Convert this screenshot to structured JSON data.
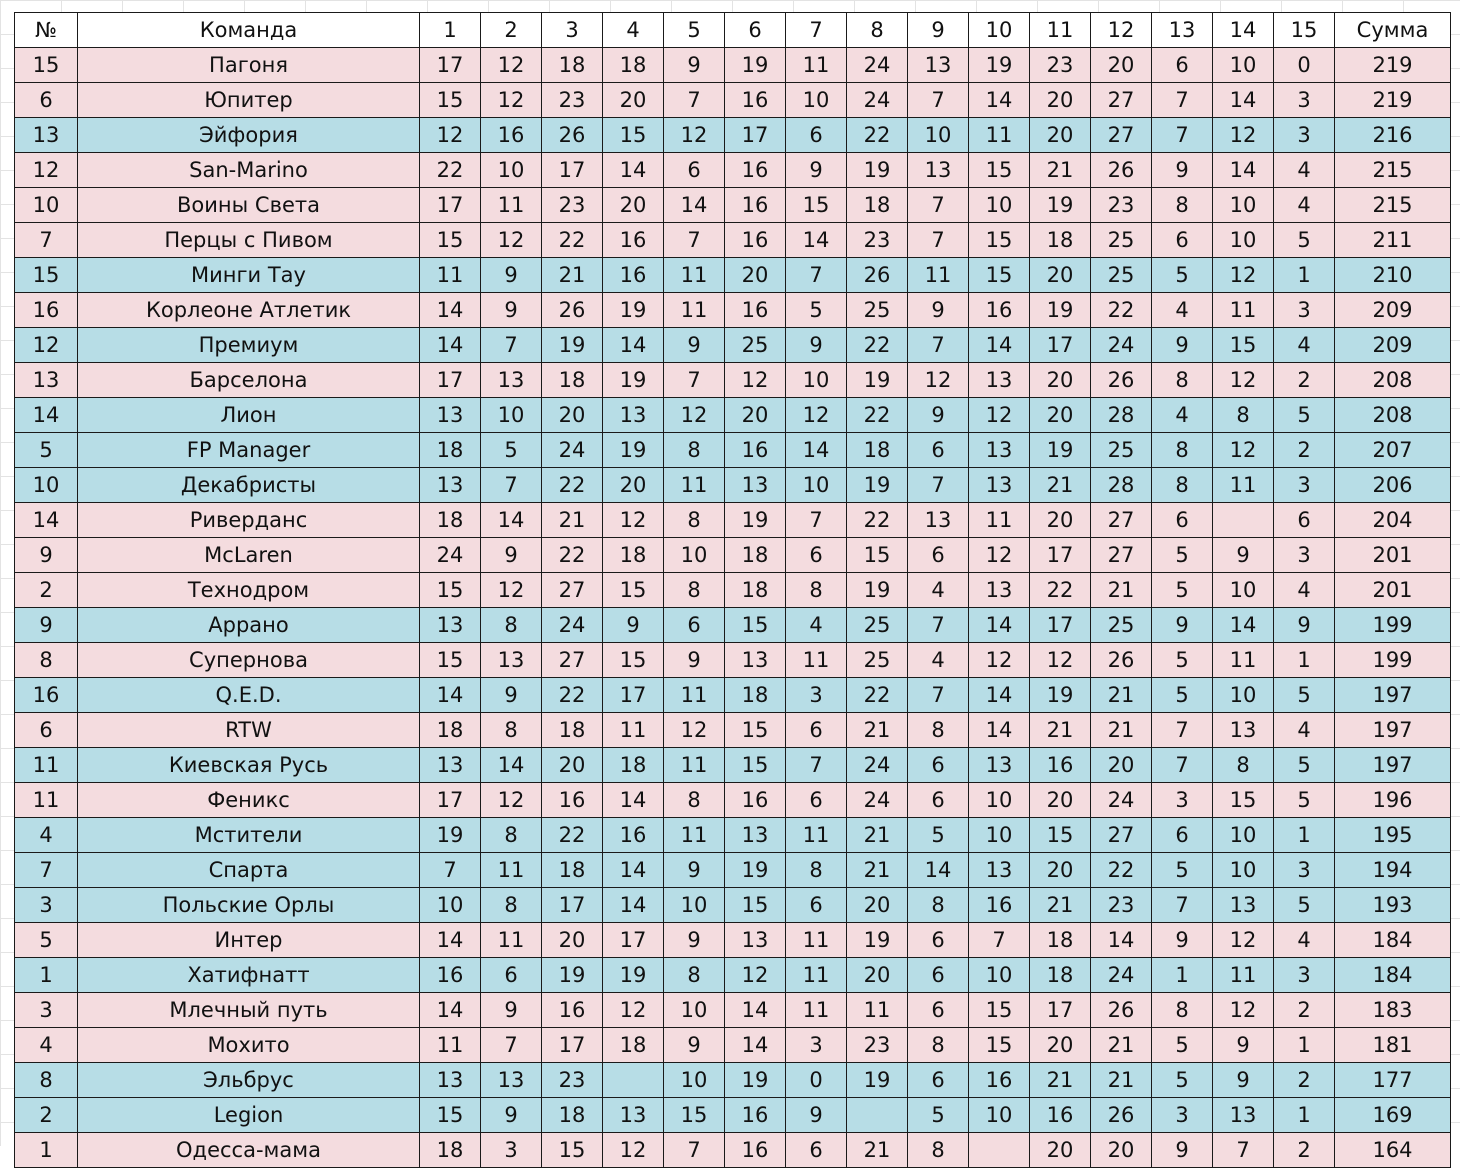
{
  "colors": {
    "pink_row": "#f4dcdf",
    "blue_row": "#b7dde6",
    "border": "#1a1a1a"
  },
  "table": {
    "headers": [
      "№",
      "Команда",
      "1",
      "2",
      "3",
      "4",
      "5",
      "6",
      "7",
      "8",
      "9",
      "10",
      "11",
      "12",
      "13",
      "14",
      "15",
      "Сумма"
    ],
    "rows": [
      {
        "color": "pink",
        "cells": [
          "15",
          "Пагоня",
          "17",
          "12",
          "18",
          "18",
          "9",
          "19",
          "11",
          "24",
          "13",
          "19",
          "23",
          "20",
          "6",
          "10",
          "0",
          "219"
        ]
      },
      {
        "color": "pink",
        "cells": [
          "6",
          "Юпитер",
          "15",
          "12",
          "23",
          "20",
          "7",
          "16",
          "10",
          "24",
          "7",
          "14",
          "20",
          "27",
          "7",
          "14",
          "3",
          "219"
        ]
      },
      {
        "color": "blue",
        "cells": [
          "13",
          "Эйфория",
          "12",
          "16",
          "26",
          "15",
          "12",
          "17",
          "6",
          "22",
          "10",
          "11",
          "20",
          "27",
          "7",
          "12",
          "3",
          "216"
        ]
      },
      {
        "color": "pink",
        "cells": [
          "12",
          "San-Marino",
          "22",
          "10",
          "17",
          "14",
          "6",
          "16",
          "9",
          "19",
          "13",
          "15",
          "21",
          "26",
          "9",
          "14",
          "4",
          "215"
        ]
      },
      {
        "color": "pink",
        "cells": [
          "10",
          "Воины Света",
          "17",
          "11",
          "23",
          "20",
          "14",
          "16",
          "15",
          "18",
          "7",
          "10",
          "19",
          "23",
          "8",
          "10",
          "4",
          "215"
        ]
      },
      {
        "color": "pink",
        "cells": [
          "7",
          "Перцы с Пивом",
          "15",
          "12",
          "22",
          "16",
          "7",
          "16",
          "14",
          "23",
          "7",
          "15",
          "18",
          "25",
          "6",
          "10",
          "5",
          "211"
        ]
      },
      {
        "color": "blue",
        "cells": [
          "15",
          "Минги Тау",
          "11",
          "9",
          "21",
          "16",
          "11",
          "20",
          "7",
          "26",
          "11",
          "15",
          "20",
          "25",
          "5",
          "12",
          "1",
          "210"
        ]
      },
      {
        "color": "pink",
        "cells": [
          "16",
          "Корлеоне Атлетик",
          "14",
          "9",
          "26",
          "19",
          "11",
          "16",
          "5",
          "25",
          "9",
          "16",
          "19",
          "22",
          "4",
          "11",
          "3",
          "209"
        ]
      },
      {
        "color": "blue",
        "cells": [
          "12",
          "Премиум",
          "14",
          "7",
          "19",
          "14",
          "9",
          "25",
          "9",
          "22",
          "7",
          "14",
          "17",
          "24",
          "9",
          "15",
          "4",
          "209"
        ]
      },
      {
        "color": "pink",
        "cells": [
          "13",
          "Барселона",
          "17",
          "13",
          "18",
          "19",
          "7",
          "12",
          "10",
          "19",
          "12",
          "13",
          "20",
          "26",
          "8",
          "12",
          "2",
          "208"
        ]
      },
      {
        "color": "blue",
        "cells": [
          "14",
          "Лион",
          "13",
          "10",
          "20",
          "13",
          "12",
          "20",
          "12",
          "22",
          "9",
          "12",
          "20",
          "28",
          "4",
          "8",
          "5",
          "208"
        ]
      },
      {
        "color": "blue",
        "cells": [
          "5",
          "FP Manager",
          "18",
          "5",
          "24",
          "19",
          "8",
          "16",
          "14",
          "18",
          "6",
          "13",
          "19",
          "25",
          "8",
          "12",
          "2",
          "207"
        ]
      },
      {
        "color": "blue",
        "cells": [
          "10",
          "Декабристы",
          "13",
          "7",
          "22",
          "20",
          "11",
          "13",
          "10",
          "19",
          "7",
          "13",
          "21",
          "28",
          "8",
          "11",
          "3",
          "206"
        ]
      },
      {
        "color": "pink",
        "cells": [
          "14",
          "Риверданс",
          "18",
          "14",
          "21",
          "12",
          "8",
          "19",
          "7",
          "22",
          "13",
          "11",
          "20",
          "27",
          "6",
          "",
          "6",
          "204"
        ]
      },
      {
        "color": "pink",
        "cells": [
          "9",
          "McLaren",
          "24",
          "9",
          "22",
          "18",
          "10",
          "18",
          "6",
          "15",
          "6",
          "12",
          "17",
          "27",
          "5",
          "9",
          "3",
          "201"
        ]
      },
      {
        "color": "pink",
        "cells": [
          "2",
          "Технодром",
          "15",
          "12",
          "27",
          "15",
          "8",
          "18",
          "8",
          "19",
          "4",
          "13",
          "22",
          "21",
          "5",
          "10",
          "4",
          "201"
        ]
      },
      {
        "color": "blue",
        "cells": [
          "9",
          "Аррано",
          "13",
          "8",
          "24",
          "9",
          "6",
          "15",
          "4",
          "25",
          "7",
          "14",
          "17",
          "25",
          "9",
          "14",
          "9",
          "199"
        ]
      },
      {
        "color": "pink",
        "cells": [
          "8",
          "Супернова",
          "15",
          "13",
          "27",
          "15",
          "9",
          "13",
          "11",
          "25",
          "4",
          "12",
          "12",
          "26",
          "5",
          "11",
          "1",
          "199"
        ]
      },
      {
        "color": "blue",
        "cells": [
          "16",
          "Q.E.D.",
          "14",
          "9",
          "22",
          "17",
          "11",
          "18",
          "3",
          "22",
          "7",
          "14",
          "19",
          "21",
          "5",
          "10",
          "5",
          "197"
        ]
      },
      {
        "color": "pink",
        "cells": [
          "6",
          "RTW",
          "18",
          "8",
          "18",
          "11",
          "12",
          "15",
          "6",
          "21",
          "8",
          "14",
          "21",
          "21",
          "7",
          "13",
          "4",
          "197"
        ]
      },
      {
        "color": "blue",
        "cells": [
          "11",
          "Киевская Русь",
          "13",
          "14",
          "20",
          "18",
          "11",
          "15",
          "7",
          "24",
          "6",
          "13",
          "16",
          "20",
          "7",
          "8",
          "5",
          "197"
        ]
      },
      {
        "color": "pink",
        "cells": [
          "11",
          "Феникс",
          "17",
          "12",
          "16",
          "14",
          "8",
          "16",
          "6",
          "24",
          "6",
          "10",
          "20",
          "24",
          "3",
          "15",
          "5",
          "196"
        ]
      },
      {
        "color": "blue",
        "cells": [
          "4",
          "Мстители",
          "19",
          "8",
          "22",
          "16",
          "11",
          "13",
          "11",
          "21",
          "5",
          "10",
          "15",
          "27",
          "6",
          "10",
          "1",
          "195"
        ]
      },
      {
        "color": "blue",
        "cells": [
          "7",
          "Спарта",
          "7",
          "11",
          "18",
          "14",
          "9",
          "19",
          "8",
          "21",
          "14",
          "13",
          "20",
          "22",
          "5",
          "10",
          "3",
          "194"
        ]
      },
      {
        "color": "blue",
        "cells": [
          "3",
          "Польские Орлы",
          "10",
          "8",
          "17",
          "14",
          "10",
          "15",
          "6",
          "20",
          "8",
          "16",
          "21",
          "23",
          "7",
          "13",
          "5",
          "193"
        ]
      },
      {
        "color": "pink",
        "cells": [
          "5",
          "Интер",
          "14",
          "11",
          "20",
          "17",
          "9",
          "13",
          "11",
          "19",
          "6",
          "7",
          "18",
          "14",
          "9",
          "12",
          "4",
          "184"
        ]
      },
      {
        "color": "blue",
        "cells": [
          "1",
          "Хатифнатт",
          "16",
          "6",
          "19",
          "19",
          "8",
          "12",
          "11",
          "20",
          "6",
          "10",
          "18",
          "24",
          "1",
          "11",
          "3",
          "184"
        ]
      },
      {
        "color": "pink",
        "cells": [
          "3",
          "Млечный путь",
          "14",
          "9",
          "16",
          "12",
          "10",
          "14",
          "11",
          "11",
          "6",
          "15",
          "17",
          "26",
          "8",
          "12",
          "2",
          "183"
        ]
      },
      {
        "color": "pink",
        "cells": [
          "4",
          "Мохито",
          "11",
          "7",
          "17",
          "18",
          "9",
          "14",
          "3",
          "23",
          "8",
          "15",
          "20",
          "21",
          "5",
          "9",
          "1",
          "181"
        ]
      },
      {
        "color": "blue",
        "cells": [
          "8",
          "Эльбрус",
          "13",
          "13",
          "23",
          "",
          "10",
          "19",
          "0",
          "19",
          "6",
          "16",
          "21",
          "21",
          "5",
          "9",
          "2",
          "177"
        ]
      },
      {
        "color": "blue",
        "cells": [
          "2",
          "Legion",
          "15",
          "9",
          "18",
          "13",
          "15",
          "16",
          "9",
          "",
          "5",
          "10",
          "16",
          "26",
          "3",
          "13",
          "1",
          "169"
        ]
      },
      {
        "color": "pink",
        "cells": [
          "1",
          "Одесса-мама",
          "18",
          "3",
          "15",
          "12",
          "7",
          "16",
          "6",
          "21",
          "8",
          "",
          "20",
          "20",
          "9",
          "7",
          "2",
          "164"
        ]
      }
    ]
  }
}
